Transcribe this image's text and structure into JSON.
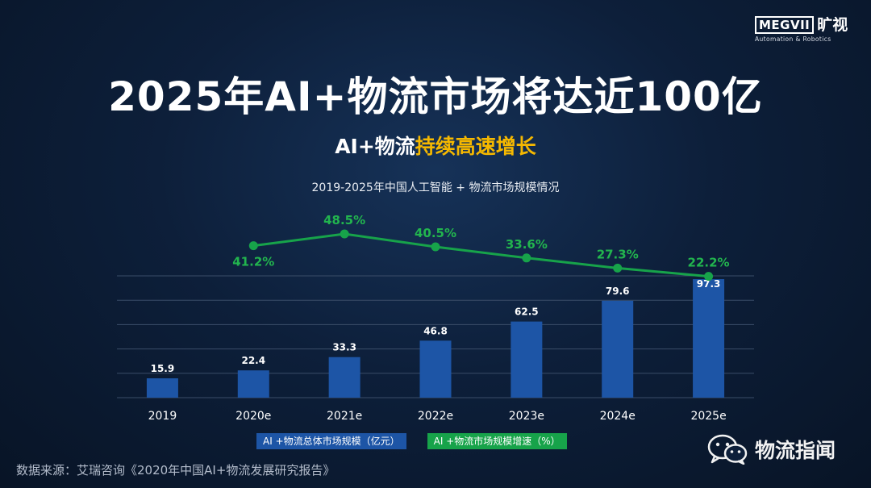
{
  "logo": {
    "brand": "MEGVII",
    "brand_cn": "旷视",
    "tagline": "Automation & Robotics"
  },
  "header": {
    "title": "2025年AI+物流市场将达近100亿",
    "subtitle_prefix": "AI+物流",
    "subtitle_highlight": "持续高速增长"
  },
  "chart_data": {
    "type": "bar+line",
    "title": "2019-2025年中国人工智能 + 物流市场规模情况",
    "categories": [
      "2019",
      "2020e",
      "2021e",
      "2022e",
      "2023e",
      "2024e",
      "2025e"
    ],
    "series": [
      {
        "name": "AI +物流总体市场规模（亿元）",
        "type": "bar",
        "values": [
          15.9,
          22.4,
          33.3,
          46.8,
          62.5,
          79.6,
          97.3
        ],
        "color": "#1d55a6"
      },
      {
        "name": "AI +物流市场规模增速（%）",
        "type": "line",
        "x": [
          "2020e",
          "2021e",
          "2022e",
          "2023e",
          "2024e",
          "2025e"
        ],
        "values": [
          41.2,
          48.5,
          40.5,
          33.6,
          27.3,
          22.2
        ],
        "labels": [
          "41.2%",
          "48.5%",
          "40.5%",
          "33.6%",
          "27.3%",
          "22.2%"
        ],
        "color": "#17a34a"
      }
    ],
    "bar_ylim": [
      0,
      100
    ],
    "grid": true,
    "legend_position": "bottom"
  },
  "source": "数据来源：艾瑞咨询《2020年中国AI+物流发展研究报告》",
  "watermark": {
    "text": "物流指闻",
    "icon": "wechat-icon"
  },
  "colors": {
    "accent": "#f5b800",
    "bar": "#1d55a6",
    "line": "#17a34a"
  }
}
